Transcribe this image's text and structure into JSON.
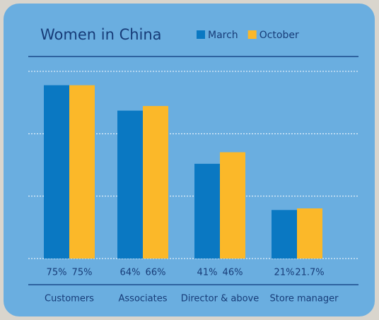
{
  "chart_data": {
    "type": "bar",
    "title": "Women in China",
    "categories": [
      "Customers",
      "Associates",
      "Director & above",
      "Store manager"
    ],
    "series": [
      {
        "name": "March",
        "color": "#0a78c2",
        "values": [
          75,
          64,
          41,
          21
        ],
        "value_labels": [
          "75%",
          "64%",
          "41%",
          "21%"
        ]
      },
      {
        "name": "October",
        "color": "#fbb829",
        "values": [
          75,
          66,
          46,
          21.7
        ],
        "value_labels": [
          "75%",
          "66%",
          "46%",
          "21.7%"
        ]
      }
    ],
    "ylim": [
      0,
      81
    ],
    "yticks": [
      27,
      54,
      81
    ],
    "grid": true
  }
}
